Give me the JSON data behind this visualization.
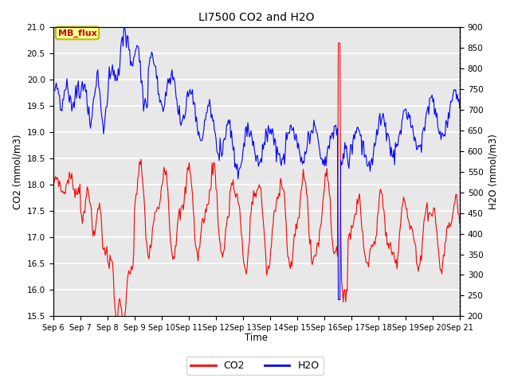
{
  "title": "LI7500 CO2 and H2O",
  "xlabel": "Time",
  "ylabel_left": "CO2 (mmol/m3)",
  "ylabel_right": "H2O (mmol/m3)",
  "co2_ylim": [
    15.5,
    21.0
  ],
  "h2o_ylim": [
    200,
    900
  ],
  "co2_yticks": [
    15.5,
    16.0,
    16.5,
    17.0,
    17.5,
    18.0,
    18.5,
    19.0,
    19.5,
    20.0,
    20.5,
    21.0
  ],
  "h2o_yticks": [
    200,
    250,
    300,
    350,
    400,
    450,
    500,
    550,
    600,
    650,
    700,
    750,
    800,
    850,
    900
  ],
  "xtick_labels": [
    "Sep 6",
    "Sep 7",
    "Sep 8",
    "Sep 9",
    "Sep 10",
    "Sep 11",
    "Sep 12",
    "Sep 13",
    "Sep 14",
    "Sep 15",
    "Sep 16",
    "Sep 17",
    "Sep 18",
    "Sep 19",
    "Sep 20",
    "Sep 21"
  ],
  "text_annotation": "MB_flux",
  "text_box_facecolor": "#FFFF99",
  "text_box_edgecolor": "#BBBB00",
  "text_color": "#CC0000",
  "co2_color": "#FF0000",
  "h2o_color": "#0000FF",
  "bg_color": "#E8E8E8",
  "grid_color": "#FFFFFF",
  "n_points": 500
}
